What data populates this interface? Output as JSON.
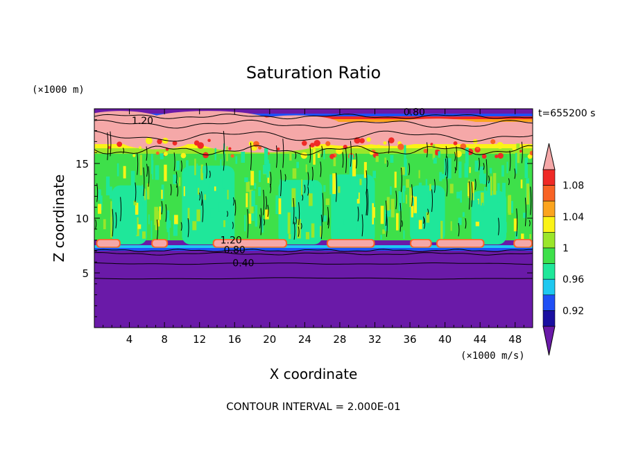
{
  "chart_data": {
    "type": "heatmap",
    "title": "Saturation Ratio",
    "xlabel": "X coordinate",
    "ylabel": "Z coordinate",
    "x_unit_label": "(×1000 m/s)",
    "y_unit_label": "(×1000 m)",
    "time_label": "t=655200 s",
    "footer": "CONTOUR INTERVAL = 2.000E-01",
    "xlim": [
      0,
      50
    ],
    "ylim": [
      0,
      20
    ],
    "x_ticks": [
      "4",
      "8",
      "12",
      "16",
      "20",
      "24",
      "28",
      "32",
      "36",
      "40",
      "44",
      "48"
    ],
    "y_ticks": [
      "5",
      "10",
      "15"
    ],
    "x_tick_values": [
      4,
      8,
      12,
      16,
      20,
      24,
      28,
      32,
      36,
      40,
      44,
      48
    ],
    "y_tick_values": [
      5,
      10,
      15
    ],
    "contour_labels": [
      {
        "text": "1.20",
        "x": 5.5,
        "y": 18.6
      },
      {
        "text": "0.80",
        "x": 36.5,
        "y": 19.4
      },
      {
        "text": "1.20",
        "x": 15.6,
        "y": 7.7
      },
      {
        "text": "0.80",
        "x": 16.0,
        "y": 6.8
      },
      {
        "text": "0.40",
        "x": 17.0,
        "y": 5.6
      }
    ],
    "colorbar": {
      "labels": [
        "1.08",
        "1.04",
        "1",
        "0.96",
        "0.92"
      ],
      "levels": [
        {
          "value": "<0.92",
          "color": "#6a1aa8"
        },
        {
          "value": "0.92",
          "color": "#1a0fa0"
        },
        {
          "value": "0.94",
          "color": "#1f4ff5"
        },
        {
          "value": "0.96",
          "color": "#1ec8f0"
        },
        {
          "value": "0.98",
          "color": "#1fe79a"
        },
        {
          "value": "1.00",
          "color": "#3ee04a"
        },
        {
          "value": "1.02",
          "color": "#9be62a"
        },
        {
          "value": "1.04",
          "color": "#fbf317"
        },
        {
          "value": "1.06",
          "color": "#fba41e"
        },
        {
          "value": "1.08",
          "color": "#f86325"
        },
        {
          "value": "1.10",
          "color": "#ef2a26"
        },
        {
          "value": ">1.10",
          "color": "#f5a8a8"
        }
      ]
    }
  }
}
